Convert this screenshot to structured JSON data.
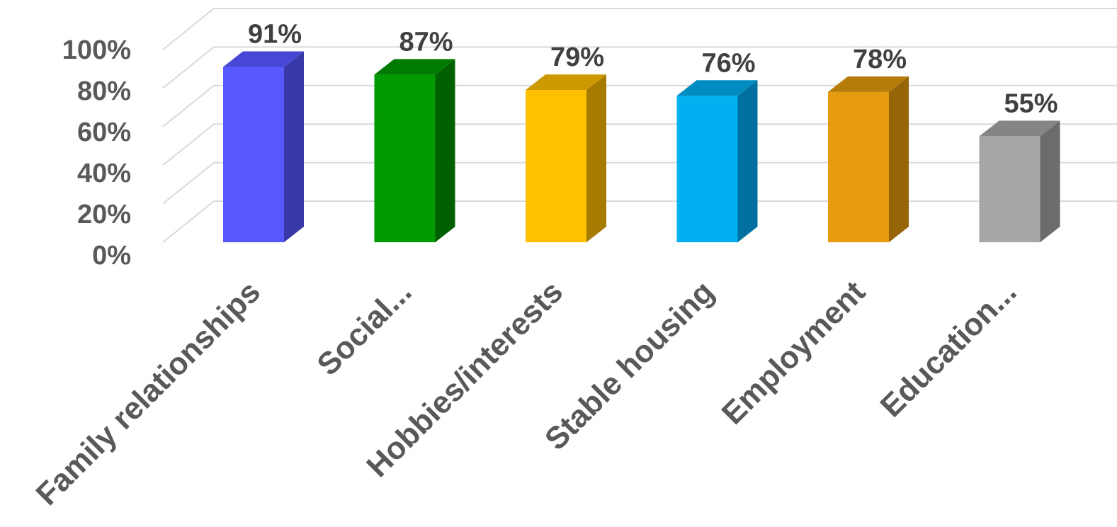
{
  "chart_data": {
    "type": "bar",
    "title": "",
    "xlabel": "",
    "ylabel": "",
    "ylim": [
      0,
      100
    ],
    "yticks": [
      "0%",
      "20%",
      "40%",
      "60%",
      "80%",
      "100%"
    ],
    "grid": true,
    "categories": [
      "Family relationships",
      "Social...",
      "Hobbies/interests",
      "Stable housing",
      "Employment",
      "Education..."
    ],
    "values": [
      91,
      87,
      79,
      76,
      78,
      55
    ],
    "data_labels": [
      "91%",
      "87%",
      "79%",
      "76%",
      "78%",
      "55%"
    ],
    "colors": [
      {
        "front": "#5858ff",
        "side": "#3838a8",
        "top": "#4747d6"
      },
      {
        "front": "#009900",
        "side": "#006000",
        "top": "#007a00"
      },
      {
        "front": "#ffc000",
        "side": "#a67c00",
        "top": "#cc9a00"
      },
      {
        "front": "#00b0f0",
        "side": "#0070a0",
        "top": "#008cc0"
      },
      {
        "front": "#e69b0e",
        "side": "#956508",
        "top": "#b87c0b"
      },
      {
        "front": "#a6a6a6",
        "side": "#6c6c6c",
        "top": "#858585"
      }
    ]
  }
}
